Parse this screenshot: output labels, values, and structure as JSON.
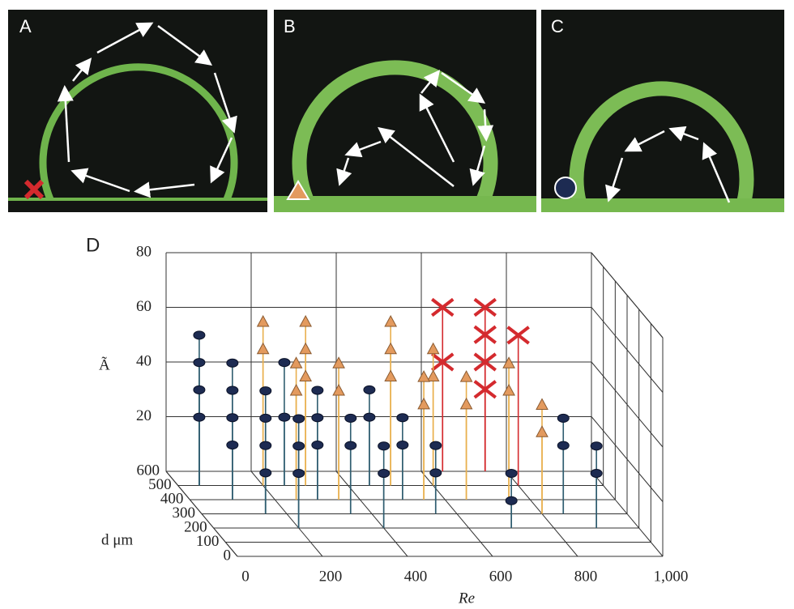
{
  "panels": [
    {
      "label": "A"
    },
    {
      "label": "B"
    },
    {
      "label": "C"
    }
  ],
  "chart_data": {
    "type": "scatter3d",
    "title": "D",
    "x_label": "Re",
    "y_label": "d μm",
    "z_label": "Ã",
    "xlim": [
      0,
      1000
    ],
    "xticks": [
      0,
      200,
      400,
      600,
      800,
      {
        "value": 1000,
        "label": "1,000"
      }
    ],
    "ylim": [
      0,
      600
    ],
    "yticks": [
      0,
      100,
      200,
      300,
      400,
      500,
      600
    ],
    "zlim": [
      0,
      80
    ],
    "zticks": [
      20,
      40,
      60,
      80
    ],
    "grid": true,
    "series": [
      {
        "marker": "circle",
        "color": "#1d2b52",
        "stem_color": "#2f5d70",
        "x": [
          50,
          50,
          50,
          50,
          100,
          100,
          100,
          100,
          150,
          150,
          150,
          150,
          200,
          200,
          200,
          250,
          250,
          300,
          300,
          300,
          350,
          350,
          400,
          400,
          450,
          450,
          500,
          500,
          550,
          550,
          700,
          700,
          850,
          850,
          900,
          900
        ],
        "y": [
          500,
          500,
          500,
          500,
          400,
          400,
          400,
          400,
          300,
          300,
          300,
          300,
          200,
          200,
          200,
          500,
          500,
          400,
          400,
          400,
          300,
          300,
          200,
          200,
          500,
          500,
          400,
          400,
          300,
          300,
          200,
          200,
          300,
          300,
          200,
          200
        ],
        "z": [
          55,
          45,
          35,
          25,
          50,
          40,
          30,
          20,
          45,
          35,
          25,
          15,
          40,
          30,
          20,
          45,
          25,
          40,
          30,
          20,
          35,
          25,
          30,
          20,
          35,
          25,
          30,
          20,
          25,
          15,
          20,
          10,
          35,
          25,
          30,
          20
        ]
      },
      {
        "marker": "triangle",
        "color": "#e39a5e",
        "stem_color": "#e9b04e",
        "x": [
          200,
          200,
          250,
          250,
          300,
          300,
          300,
          350,
          350,
          500,
          500,
          500,
          550,
          550,
          600,
          600,
          650,
          650,
          750,
          750,
          800,
          800
        ],
        "y": [
          500,
          500,
          400,
          400,
          500,
          500,
          500,
          400,
          400,
          500,
          500,
          500,
          400,
          400,
          500,
          500,
          400,
          400,
          400,
          400,
          300,
          300
        ],
        "z": [
          60,
          50,
          50,
          40,
          60,
          50,
          40,
          50,
          40,
          60,
          50,
          40,
          45,
          35,
          50,
          40,
          45,
          35,
          50,
          40,
          40,
          30
        ]
      },
      {
        "marker": "cross",
        "color": "#d42a2e",
        "stem_color": "#d42a2e",
        "x": [
          650,
          650,
          750,
          750,
          750,
          750,
          800
        ],
        "y": [
          600,
          600,
          600,
          600,
          600,
          600,
          500
        ],
        "z": [
          60,
          40,
          60,
          50,
          40,
          30,
          55
        ]
      }
    ]
  }
}
